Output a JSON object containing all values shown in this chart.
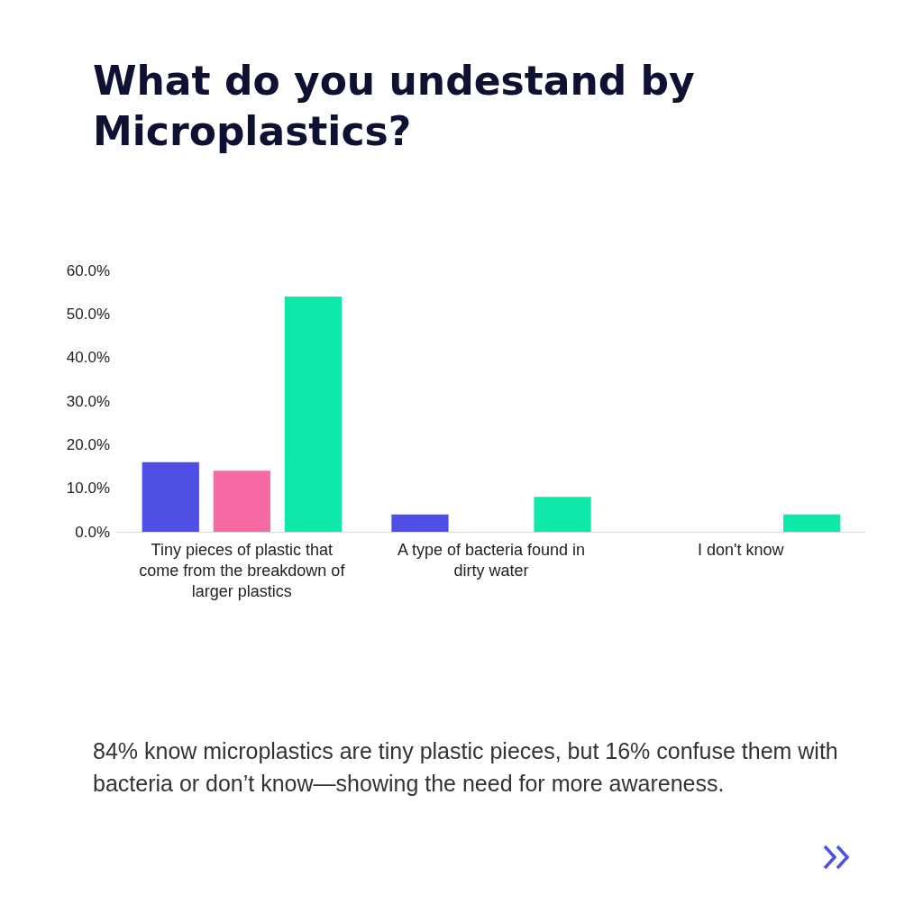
{
  "chart_data": {
    "type": "bar",
    "title": "What do you undestand by Microplastics?",
    "categories": [
      "Tiny pieces of plastic that come from the breakdown of larger plastics",
      "A type of bacteria found in dirty water",
      "I don't know"
    ],
    "series": [
      {
        "color": "#4f4fe6",
        "values": [
          16,
          4,
          0
        ]
      },
      {
        "color": "#f56aa4",
        "values": [
          14,
          0,
          0
        ]
      },
      {
        "color": "#0ee8ab",
        "values": [
          54,
          8,
          4
        ]
      }
    ],
    "ylim": [
      0,
      60
    ],
    "yticks": [
      {
        "value": 0,
        "label": "0.0%"
      },
      {
        "value": 10,
        "label": "10.0%"
      },
      {
        "value": 20,
        "label": "20.0%"
      },
      {
        "value": 30,
        "label": "30.0%"
      },
      {
        "value": 40,
        "label": "40.0%"
      },
      {
        "value": 50,
        "label": "50.0%"
      },
      {
        "value": 60,
        "label": "60.0%"
      }
    ],
    "grid": false,
    "annotations": [
      "84% know microplastics are tiny plastic pieces, but 16% confuse them with bacteria or don’t know—showing the need for more awareness."
    ]
  }
}
